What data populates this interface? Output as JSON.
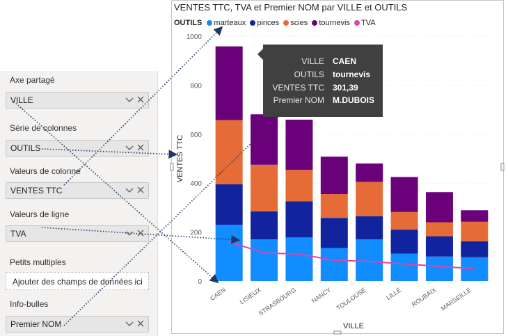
{
  "pane": {
    "sections": [
      {
        "label": "Axe partagé",
        "field": "VILLE"
      },
      {
        "label": "Série de colonnes",
        "field": "OUTILS"
      },
      {
        "label": "Valeurs de colonne",
        "field": "VENTES TTC"
      },
      {
        "label": "Valeurs de ligne",
        "field": "TVA"
      },
      {
        "label": "Petits multiples",
        "placeholder": "Ajouter des champs de données ici"
      },
      {
        "label": "Info-bulles",
        "field": "Premier NOM"
      }
    ]
  },
  "visual": {
    "title": "VENTES TTC, TVA et Premier NOM par VILLE et OUTILS"
  },
  "legend": {
    "title": "OUTILS",
    "items": [
      {
        "name": "marteaux",
        "color": "#118dff"
      },
      {
        "name": "pinces",
        "color": "#12239e"
      },
      {
        "name": "scies",
        "color": "#e66c37"
      },
      {
        "name": "tournevis",
        "color": "#6b007b"
      },
      {
        "name": "TVA",
        "color": "#e044a7"
      }
    ]
  },
  "tooltip": {
    "rows": [
      {
        "key": "VILLE",
        "value": "CAEN"
      },
      {
        "key": "OUTILS",
        "value": "tournevis"
      },
      {
        "key": "VENTES TTC",
        "value": "301,39"
      },
      {
        "key": "Premier NOM",
        "value": "M.DUBOIS"
      }
    ]
  },
  "chart_data": {
    "type": "bar",
    "stacked": true,
    "xlabel": "VILLE",
    "ylabel": "VENTES TTC",
    "ylim": [
      0,
      1000
    ],
    "yticks": [
      0,
      200,
      400,
      600,
      800,
      1000
    ],
    "categories": [
      "CAEN",
      "LISIEUX",
      "STRASBOURG",
      "NANCY",
      "TOULOUSE",
      "LILLE",
      "ROUBAIX",
      "MARSEILLE"
    ],
    "series": [
      {
        "name": "marteaux",
        "color": "#118dff",
        "values": [
          230,
          170,
          178,
          135,
          170,
          112,
          100,
          97
        ]
      },
      {
        "name": "pinces",
        "color": "#12239e",
        "values": [
          165,
          115,
          148,
          123,
          95,
          98,
          83,
          65
        ]
      },
      {
        "name": "scies",
        "color": "#e66c37",
        "values": [
          262,
          190,
          128,
          97,
          140,
          72,
          57,
          80
        ]
      },
      {
        "name": "tournevis",
        "color": "#6b007b",
        "values": [
          301.39,
          206,
          205,
          153,
          75,
          143,
          123,
          47
        ]
      }
    ],
    "line_series": {
      "name": "TVA",
      "color": "#e044a7",
      "values": [
        160,
        115,
        110,
        85,
        80,
        70,
        60,
        50
      ]
    },
    "legend_position": "top-left"
  }
}
